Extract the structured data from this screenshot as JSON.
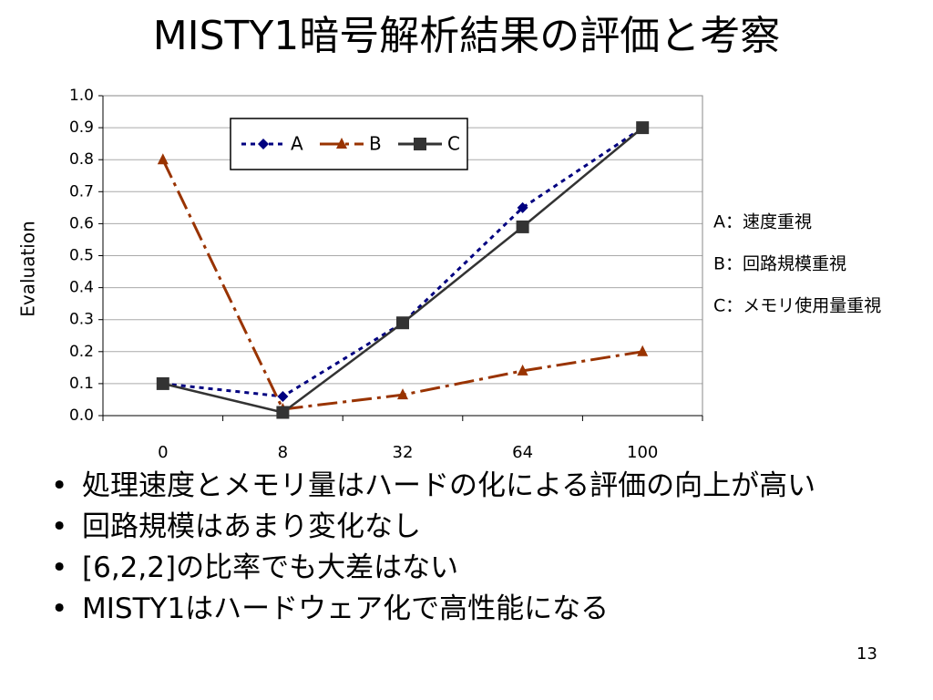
{
  "slide": {
    "title": "MISTY1暗号解析結果の評価と考察",
    "bullets": [
      "処理速度とメモリ量はハードの化による評価の向上が高い",
      "回路規模はあまり変化なし",
      "[6,2,2]の比率でも大差はない",
      "MISTY1はハードウェア化で高性能になる"
    ],
    "page_number": "13"
  },
  "chart_data": {
    "type": "line",
    "y_label": "Evaluation",
    "categories": [
      "0",
      "8",
      "32",
      "64",
      "100"
    ],
    "series": [
      {
        "name": "A",
        "color": "#000080",
        "dash": "dotted",
        "marker": "diamond",
        "values": [
          0.1,
          0.06,
          0.29,
          0.65,
          0.9
        ]
      },
      {
        "name": "B",
        "color": "#993300",
        "dash": "dashdot",
        "marker": "triangle",
        "values": [
          0.8,
          0.02,
          0.065,
          0.14,
          0.2
        ]
      },
      {
        "name": "C",
        "color": "#333333",
        "dash": "solid",
        "marker": "square",
        "values": [
          0.1,
          0.01,
          0.29,
          0.59,
          0.9
        ]
      }
    ],
    "ylim": [
      0,
      1
    ],
    "yticks": [
      {
        "value": 0,
        "label": "0.0"
      },
      0.1,
      0.2,
      0.3,
      0.4,
      0.5,
      0.6,
      0.7,
      0.8,
      0.9,
      {
        "value": 1,
        "label": "1.0"
      }
    ],
    "grid": true,
    "legend": "top",
    "annotations": [
      "A：速度重視",
      "B：回路規模重視",
      "C：メモリ使用量重視"
    ]
  }
}
